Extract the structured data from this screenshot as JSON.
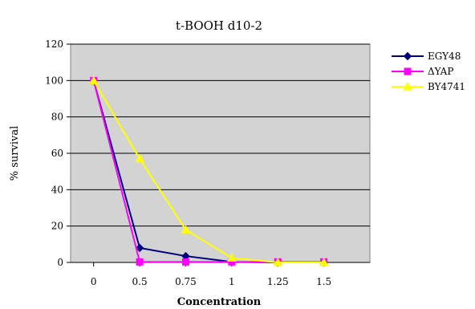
{
  "chart_data": {
    "type": "line",
    "title": "t-BOOH d10-2",
    "xlabel": "Concentration",
    "ylabel": "% survival",
    "categories": [
      "0",
      "0.5",
      "0.75",
      "1",
      "1.25",
      "1.5"
    ],
    "ylim": [
      0,
      120
    ],
    "yticks": [
      "0",
      "20",
      "40",
      "60",
      "80",
      "100",
      "120"
    ],
    "grid": true,
    "legend_position": "right",
    "plot_background": "#d3d3d3",
    "series": [
      {
        "name": "EGY48",
        "color": "#000080",
        "marker": "diamond",
        "values": [
          100,
          8,
          3.5,
          0.3,
          0,
          0
        ]
      },
      {
        "name": "ΔYAP",
        "color": "#ff00ff",
        "marker": "square",
        "values": [
          100,
          0.3,
          0.3,
          0.3,
          0.3,
          0.3
        ]
      },
      {
        "name": "BY4741",
        "color": "#ffff00",
        "marker": "triangle",
        "values": [
          100,
          57,
          18,
          2.5,
          0,
          0
        ]
      }
    ]
  }
}
